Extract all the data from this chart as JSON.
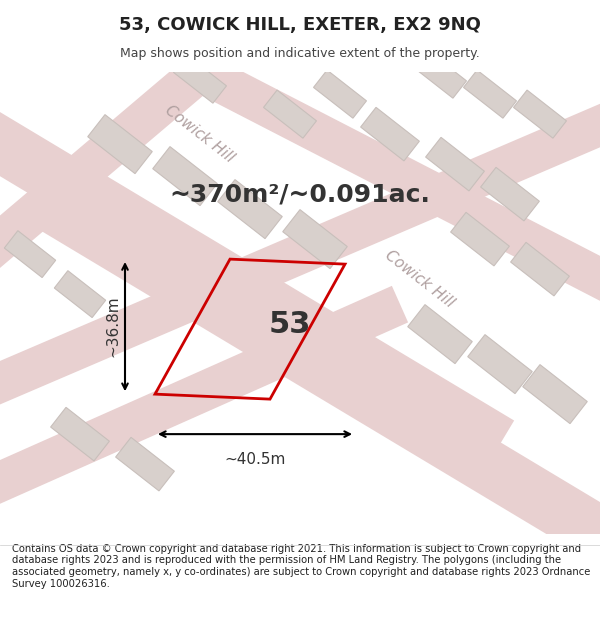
{
  "title": "53, COWICK HILL, EXETER, EX2 9NQ",
  "subtitle": "Map shows position and indicative extent of the property.",
  "area_text": "~370m²/~0.091ac.",
  "width_label": "~40.5m",
  "height_label": "~36.8m",
  "number_label": "53",
  "footer": "Contains OS data © Crown copyright and database right 2021. This information is subject to Crown copyright and database rights 2023 and is reproduced with the permission of HM Land Registry. The polygons (including the associated geometry, namely x, y co-ordinates) are subject to Crown copyright and database rights 2023 Ordnance Survey 100026316.",
  "bg_color": "#f5f5f5",
  "map_bg": "#f0ece8",
  "road_color": "#e8d0d0",
  "road_outline": "#e0b8b8",
  "building_color": "#d8d0cc",
  "building_outline": "#c8bfbb",
  "plot_color": "#cc0000",
  "road_label_color": "#b0a0a0",
  "street_name": "Cowick Hill"
}
